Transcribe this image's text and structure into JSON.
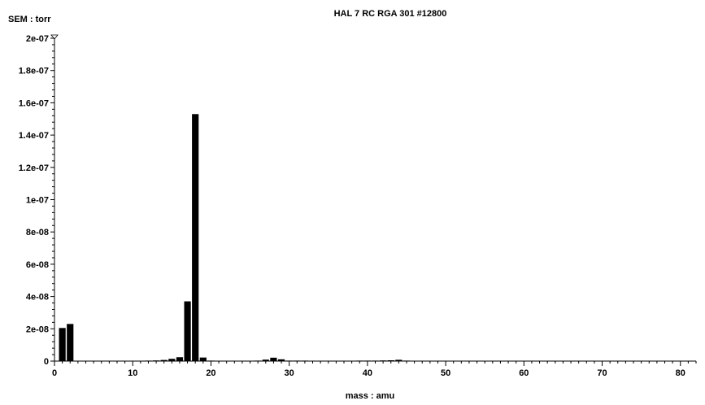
{
  "chart_data": {
    "type": "bar",
    "title": "HAL 7 RC RGA 301 #12800",
    "ylabel": "SEM : torr",
    "xlabel": "mass : amu",
    "xlim": [
      0,
      82
    ],
    "ylim": [
      0,
      2e-07
    ],
    "x_ticks": [
      "0",
      "10",
      "20",
      "30",
      "40",
      "50",
      "60",
      "70",
      "80"
    ],
    "y_ticks": [
      "0",
      "2e-08",
      "4e-08",
      "6e-08",
      "8e-08",
      "1e-07",
      "1.2e-07",
      "1.4e-07",
      "1.6e-07",
      "1.8e-07",
      "2e-07"
    ],
    "grid": false,
    "legend": "none",
    "bar_color": "#000000",
    "x": [
      1,
      2,
      12,
      13,
      14,
      15,
      16,
      17,
      18,
      19,
      20,
      26,
      27,
      28,
      29,
      30,
      31,
      32,
      39,
      40,
      41,
      42,
      43,
      44,
      45
    ],
    "values": [
      2.05e-08,
      2.3e-08,
      2e-10,
      4e-10,
      7e-10,
      1.4e-09,
      2.4e-09,
      3.7e-08,
      1.53e-07,
      2.2e-09,
      3e-10,
      3e-10,
      9e-10,
      2.1e-09,
      1.1e-09,
      2e-10,
      3e-10,
      2e-10,
      2e-10,
      3e-10,
      3e-10,
      4e-10,
      5e-10,
      8e-10,
      2e-10
    ]
  }
}
